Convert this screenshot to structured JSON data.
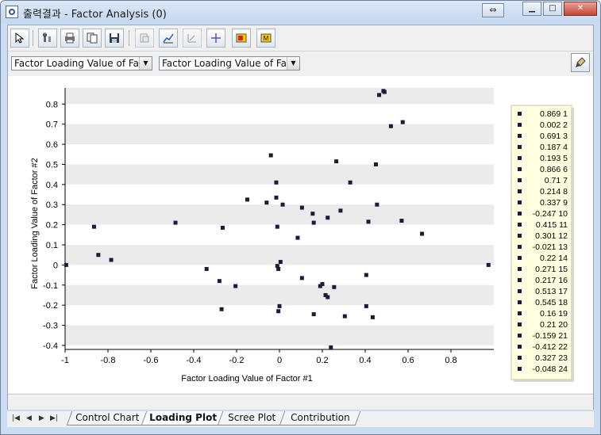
{
  "window": {
    "title": "출력결과 - Factor Analysis (0)"
  },
  "selects": {
    "x_factor": "Factor Loading Value of Fac",
    "y_factor": "Factor Loading Value of Fac"
  },
  "tabs": [
    "Control Chart",
    "Loading Plot",
    "Scree Plot",
    "Contribution"
  ],
  "active_tab": "Loading Plot",
  "chart_data": {
    "type": "scatter",
    "xlabel": "Factor Loading Value of Factor #1",
    "ylabel": "Factor Loading Value of Factor #2",
    "xlim": [
      -1,
      1
    ],
    "ylim": [
      -0.42,
      0.88
    ],
    "xticks": [
      -1,
      -0.8,
      -0.6,
      -0.4,
      -0.2,
      0,
      0.2,
      0.4,
      0.6,
      0.8
    ],
    "xtick_labels": [
      "-1",
      "-0.8",
      "-0.6",
      "-0.4",
      "-0.2",
      "0",
      "0.2",
      "0.4",
      "0.6",
      "0.8"
    ],
    "yticks": [
      -0.4,
      -0.3,
      -0.2,
      -0.1,
      0,
      0.1,
      0.2,
      0.3,
      0.4,
      0.5,
      0.6,
      0.7,
      0.8
    ],
    "ytick_labels": [
      "-0.4",
      "-0.3",
      "-0.2",
      "-0.1",
      "0",
      "0.1",
      "0.2",
      "0.3",
      "0.4",
      "0.5",
      "0.6",
      "0.7",
      "0.8"
    ],
    "grid": "alternating horizontal bands",
    "legend_position": "right",
    "legend": [
      "0.869 1",
      "0.002 2",
      "0.691 3",
      "0.187 4",
      "0.193 5",
      "0.866 6",
      "0.71 7",
      "0.214 8",
      "0.337 9",
      "-0.247 10",
      "0.415 11",
      "0.301 12",
      "-0.021 13",
      "0.22 14",
      "0.271 15",
      "0.217 16",
      "0.513 17",
      "0.545 18",
      "0.16 19",
      "0.21 20",
      "-0.159 21",
      "-0.412 22",
      "0.327 23",
      "-0.048 24"
    ],
    "points": [
      [
        -0.995,
        0.0
      ],
      [
        -0.865,
        0.19
      ],
      [
        -0.845,
        0.05
      ],
      [
        -0.785,
        0.025
      ],
      [
        -0.485,
        0.21
      ],
      [
        -0.34,
        -0.02
      ],
      [
        -0.28,
        -0.08
      ],
      [
        -0.27,
        -0.22
      ],
      [
        -0.265,
        0.185
      ],
      [
        -0.205,
        -0.105
      ],
      [
        -0.15,
        0.325
      ],
      [
        -0.06,
        0.31
      ],
      [
        -0.04,
        0.545
      ],
      [
        -0.015,
        0.335
      ],
      [
        -0.015,
        0.41
      ],
      [
        -0.01,
        0.19
      ],
      [
        -0.01,
        -0.005
      ],
      [
        -0.005,
        -0.02
      ],
      [
        -0.005,
        -0.23
      ],
      [
        0.0,
        -0.205
      ],
      [
        0.005,
        0.015
      ],
      [
        0.015,
        0.3
      ],
      [
        0.085,
        0.135
      ],
      [
        0.105,
        0.285
      ],
      [
        0.105,
        -0.065
      ],
      [
        0.155,
        0.255
      ],
      [
        0.16,
        0.21
      ],
      [
        0.16,
        -0.245
      ],
      [
        0.19,
        -0.105
      ],
      [
        0.2,
        -0.095
      ],
      [
        0.215,
        -0.15
      ],
      [
        0.225,
        0.235
      ],
      [
        0.225,
        -0.16
      ],
      [
        0.24,
        -0.41
      ],
      [
        0.255,
        -0.11
      ],
      [
        0.265,
        0.515
      ],
      [
        0.285,
        0.27
      ],
      [
        0.305,
        -0.255
      ],
      [
        0.33,
        0.41
      ],
      [
        0.405,
        -0.05
      ],
      [
        0.405,
        -0.205
      ],
      [
        0.415,
        0.215
      ],
      [
        0.435,
        -0.26
      ],
      [
        0.45,
        0.5
      ],
      [
        0.455,
        0.3
      ],
      [
        0.465,
        0.845
      ],
      [
        0.485,
        0.865
      ],
      [
        0.49,
        0.86
      ],
      [
        0.52,
        0.69
      ],
      [
        0.57,
        0.22
      ],
      [
        0.575,
        0.71
      ],
      [
        0.665,
        0.155
      ],
      [
        0.975,
        0.0
      ]
    ]
  }
}
